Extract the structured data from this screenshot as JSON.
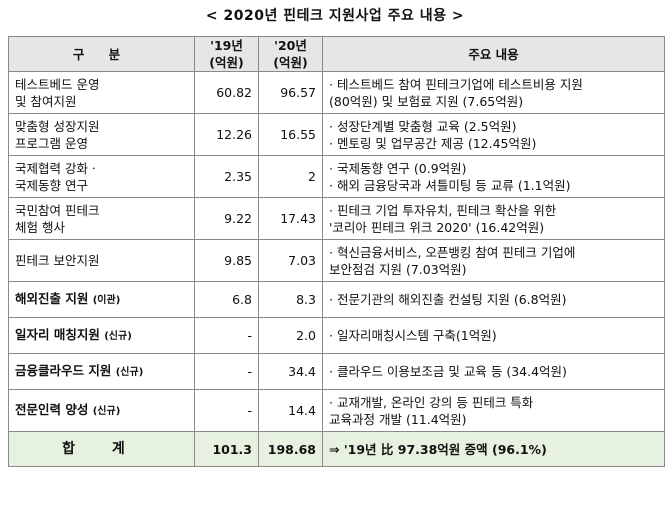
{
  "title": "< 2020년 핀테크 지원사업 주요 내용 >",
  "headers": {
    "category": "구 분",
    "y2019_line1": "'19년",
    "y2019_line2": "(억원)",
    "y2020_line1": "'20년",
    "y2020_line2": "(억원)",
    "content": "주요 내용"
  },
  "rows": [
    {
      "category": [
        "테스트베드 운영",
        "및 참여지원"
      ],
      "tag": "",
      "bold": false,
      "y2019": "60.82",
      "y2020": "96.57",
      "content": [
        "· 테스트베드 참여 핀테크기업에 테스트비용 지원",
        "(80억원) 및 보험료 지원 (7.65억원)"
      ]
    },
    {
      "category": [
        "맞춤형 성장지원",
        "프로그램 운영"
      ],
      "tag": "",
      "bold": false,
      "y2019": "12.26",
      "y2020": "16.55",
      "content": [
        "· 성장단계별 맞춤형 교육 (2.5억원)",
        "· 멘토링 및 업무공간 제공 (12.45억원)"
      ]
    },
    {
      "category": [
        "국제협력 강화ㆍ",
        "국제동향 연구"
      ],
      "tag": "",
      "bold": false,
      "y2019": "2.35",
      "y2020": "2",
      "content": [
        "· 국제동향 연구 (0.9억원)",
        "· 해외 금융당국과 셔틀미팅 등 교류 (1.1억원)"
      ]
    },
    {
      "category": [
        "국민참여 핀테크",
        "체험 행사"
      ],
      "tag": "",
      "bold": false,
      "y2019": "9.22",
      "y2020": "17.43",
      "content": [
        "· 핀테크 기업 투자유치, 핀테크 확산을 위한",
        "'코리아 핀테크 위크 2020' (16.42억원)"
      ]
    },
    {
      "category": [
        "핀테크 보안지원"
      ],
      "tag": "",
      "bold": false,
      "y2019": "9.85",
      "y2020": "7.03",
      "content": [
        "· 혁신금융서비스, 오픈뱅킹 참여 핀테크 기업에",
        "보안점검 지원 (7.03억원)"
      ]
    },
    {
      "category": [
        "해외진출 지원"
      ],
      "tag": "(이관)",
      "bold": true,
      "y2019": "6.8",
      "y2020": "8.3",
      "content": [
        "· 전문기관의 해외진출 컨설팅 지원 (6.8억원)"
      ]
    },
    {
      "category": [
        "일자리 매칭지원"
      ],
      "tag": "(신규)",
      "bold": true,
      "y2019": "-",
      "y2020": "2.0",
      "content": [
        "· 일자리매칭시스템 구축(1억원)"
      ]
    },
    {
      "category": [
        "금융클라우드 지원"
      ],
      "tag": "(신규)",
      "bold": true,
      "y2019": "-",
      "y2020": "34.4",
      "content": [
        "· 클라우드 이용보조금 및 교육 등 (34.4억원)"
      ]
    },
    {
      "category": [
        "전문인력 양성"
      ],
      "tag": "(신규)",
      "bold": true,
      "y2019": "-",
      "y2020": "14.4",
      "content": [
        "· 교재개발, 온라인 강의 등 핀테크 특화",
        "교육과정 개발 (11.4억원)"
      ]
    }
  ],
  "total": {
    "label": "합 계",
    "y2019": "101.3",
    "y2020": "198.68",
    "note": "⇒ '19년 比 97.38억원 증액 (96.1%)"
  }
}
